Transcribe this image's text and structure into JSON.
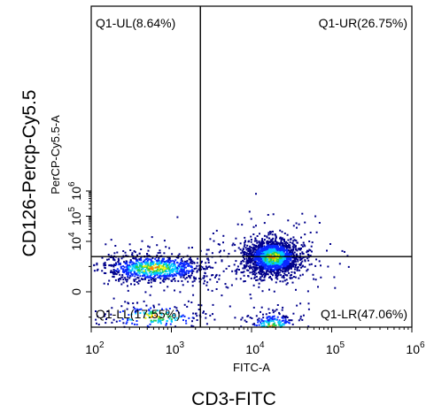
{
  "chart_data": {
    "type": "scatter",
    "title": "",
    "plot_style": "flow cytometry density dot plot",
    "x_axis": {
      "label": "FITC-A",
      "outer_label": "CD3-FITC",
      "scale": "log",
      "range": [
        100,
        1000000
      ],
      "ticks": [
        {
          "base": "10",
          "exp": "2",
          "value": 100
        },
        {
          "base": "10",
          "exp": "3",
          "value": 1000
        },
        {
          "base": "10",
          "exp": "4",
          "value": 10000
        },
        {
          "base": "10",
          "exp": "5",
          "value": 100000
        },
        {
          "base": "10",
          "exp": "6",
          "value": 1000000
        }
      ]
    },
    "y_axis": {
      "label": "PerCP-Cy5.5-A",
      "outer_label": "CD126-Percp-Cy5.5",
      "scale": "biexponential",
      "ticks": [
        {
          "base": "0",
          "exp": "",
          "value": 0
        },
        {
          "base": "10",
          "exp": "4",
          "value": 10000
        },
        {
          "base": "10",
          "exp": "5",
          "value": 100000
        },
        {
          "base": "10",
          "exp": "6",
          "value": 1000000
        }
      ]
    },
    "gates": {
      "x_threshold": 2300,
      "y_threshold": 2500
    },
    "quadrants": [
      {
        "label": "Q1-UL(8.64%)",
        "position": "top-left",
        "percent": 8.64
      },
      {
        "label": "Q1-UR(26.75%)",
        "position": "top-right",
        "percent": 26.75
      },
      {
        "label": "Q1-LL(17.55%)",
        "position": "bottom-left",
        "percent": 17.55
      },
      {
        "label": "Q1-LR(47.06%)",
        "position": "bottom-right",
        "percent": 47.06
      }
    ],
    "populations": [
      {
        "cx": 600,
        "cy": 900,
        "sx": 0.35,
        "sy": 0.3,
        "weight": 0.34,
        "quadrant": "bottom-left"
      },
      {
        "cx": 18000,
        "cy": 2500,
        "sx": 0.17,
        "sy": 0.35,
        "weight": 0.66,
        "quadrant": "bottom-right"
      }
    ],
    "grid": false,
    "legend": "none",
    "colormap": [
      "#00008b",
      "#0a28ff",
      "#00c8ff",
      "#22d050",
      "#f0f000",
      "#ff8000"
    ]
  }
}
